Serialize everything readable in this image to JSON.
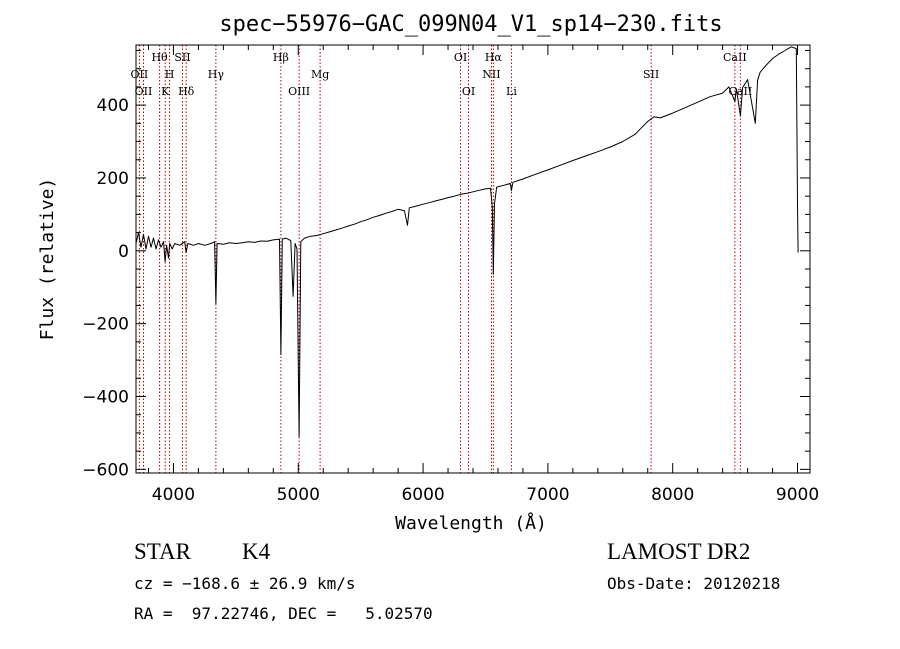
{
  "chart_data": {
    "type": "line",
    "title": "spec−55976−GAC_099N04_V1_sp14−230.fits",
    "xlabel": "Wavelength (Å)",
    "ylabel": "Flux (relative)",
    "xlim": [
      3700,
      9100
    ],
    "ylim": [
      -610,
      565
    ],
    "x_ticks": [
      4000,
      5000,
      6000,
      7000,
      8000,
      9000
    ],
    "y_ticks": [
      -600,
      -400,
      -200,
      0,
      200,
      400
    ],
    "grid": false,
    "series": [
      {
        "points": [
          [
            3700,
            20
          ],
          [
            3720,
            50
          ],
          [
            3740,
            10
          ],
          [
            3760,
            45
          ],
          [
            3780,
            5
          ],
          [
            3800,
            40
          ],
          [
            3820,
            10
          ],
          [
            3840,
            35
          ],
          [
            3860,
            5
          ],
          [
            3880,
            30
          ],
          [
            3900,
            10
          ],
          [
            3920,
            25
          ],
          [
            3933,
            -30
          ],
          [
            3945,
            15
          ],
          [
            3960,
            -20
          ],
          [
            3970,
            20
          ],
          [
            3990,
            5
          ],
          [
            4010,
            20
          ],
          [
            4050,
            15
          ],
          [
            4090,
            25
          ],
          [
            4101,
            -5
          ],
          [
            4115,
            20
          ],
          [
            4160,
            15
          ],
          [
            4200,
            20
          ],
          [
            4250,
            15
          ],
          [
            4300,
            20
          ],
          [
            4330,
            25
          ],
          [
            4340,
            -145
          ],
          [
            4350,
            20
          ],
          [
            4400,
            18
          ],
          [
            4450,
            22
          ],
          [
            4500,
            20
          ],
          [
            4550,
            22
          ],
          [
            4600,
            25
          ],
          [
            4650,
            23
          ],
          [
            4700,
            27
          ],
          [
            4750,
            26
          ],
          [
            4800,
            30
          ],
          [
            4850,
            32
          ],
          [
            4861,
            -285
          ],
          [
            4872,
            32
          ],
          [
            4900,
            35
          ],
          [
            4940,
            28
          ],
          [
            4959,
            -125
          ],
          [
            4975,
            20
          ],
          [
            4990,
            5
          ],
          [
            5007,
            -510
          ],
          [
            5020,
            25
          ],
          [
            5050,
            35
          ],
          [
            5100,
            40
          ],
          [
            5150,
            42
          ],
          [
            5200,
            47
          ],
          [
            5250,
            52
          ],
          [
            5300,
            57
          ],
          [
            5350,
            62
          ],
          [
            5400,
            68
          ],
          [
            5450,
            73
          ],
          [
            5500,
            80
          ],
          [
            5550,
            85
          ],
          [
            5600,
            92
          ],
          [
            5650,
            97
          ],
          [
            5700,
            103
          ],
          [
            5750,
            108
          ],
          [
            5800,
            114
          ],
          [
            5850,
            110
          ],
          [
            5875,
            70
          ],
          [
            5890,
            118
          ],
          [
            5950,
            123
          ],
          [
            6000,
            128
          ],
          [
            6050,
            132
          ],
          [
            6100,
            137
          ],
          [
            6150,
            141
          ],
          [
            6200,
            146
          ],
          [
            6250,
            150
          ],
          [
            6300,
            155
          ],
          [
            6350,
            158
          ],
          [
            6400,
            162
          ],
          [
            6450,
            166
          ],
          [
            6500,
            170
          ],
          [
            6540,
            172
          ],
          [
            6555,
            120
          ],
          [
            6563,
            -65
          ],
          [
            6572,
            130
          ],
          [
            6590,
            175
          ],
          [
            6650,
            180
          ],
          [
            6700,
            185
          ],
          [
            6708,
            165
          ],
          [
            6720,
            188
          ],
          [
            6800,
            197
          ],
          [
            6900,
            210
          ],
          [
            7000,
            222
          ],
          [
            7100,
            235
          ],
          [
            7200,
            248
          ],
          [
            7300,
            260
          ],
          [
            7400,
            272
          ],
          [
            7500,
            285
          ],
          [
            7600,
            300
          ],
          [
            7700,
            320
          ],
          [
            7750,
            338
          ],
          [
            7800,
            355
          ],
          [
            7850,
            368
          ],
          [
            7900,
            365
          ],
          [
            8000,
            378
          ],
          [
            8100,
            393
          ],
          [
            8200,
            408
          ],
          [
            8300,
            423
          ],
          [
            8400,
            433
          ],
          [
            8450,
            450
          ],
          [
            8498,
            410
          ],
          [
            8510,
            445
          ],
          [
            8542,
            370
          ],
          [
            8560,
            448
          ],
          [
            8600,
            470
          ],
          [
            8662,
            350
          ],
          [
            8680,
            468
          ],
          [
            8700,
            490
          ],
          [
            8750,
            510
          ],
          [
            8800,
            528
          ],
          [
            8850,
            540
          ],
          [
            8900,
            550
          ],
          [
            8950,
            560
          ],
          [
            8990,
            555
          ],
          [
            9000,
            130
          ],
          [
            9005,
            -5
          ]
        ]
      }
    ],
    "lines": [
      {
        "wavelength": 3727,
        "labels": [
          {
            "text": "OII",
            "row": 2
          }
        ]
      },
      {
        "wavelength": 3760,
        "labels": [
          {
            "text": "OII",
            "row": 3
          }
        ]
      },
      {
        "wavelength": 3889,
        "labels": [
          {
            "text": "Hθ",
            "row": 1
          }
        ]
      },
      {
        "wavelength": 3934,
        "labels": [
          {
            "text": "K",
            "row": 3
          }
        ]
      },
      {
        "wavelength": 3969,
        "labels": [
          {
            "text": "H",
            "row": 2
          }
        ]
      },
      {
        "wavelength": 4072,
        "labels": [
          {
            "text": "SII",
            "row": 1
          }
        ]
      },
      {
        "wavelength": 4102,
        "labels": [
          {
            "text": "Hδ",
            "row": 3
          }
        ]
      },
      {
        "wavelength": 4340,
        "labels": [
          {
            "text": "Hγ",
            "row": 2
          }
        ]
      },
      {
        "wavelength": 4861,
        "labels": [
          {
            "text": "Hβ",
            "row": 1
          }
        ]
      },
      {
        "wavelength": 5007,
        "labels": [
          {
            "text": "OIII",
            "row": 3
          }
        ]
      },
      {
        "wavelength": 5175,
        "labels": [
          {
            "text": "Mg",
            "row": 2
          }
        ]
      },
      {
        "wavelength": 6300,
        "labels": [
          {
            "text": "OI",
            "row": 1
          }
        ]
      },
      {
        "wavelength": 6364,
        "labels": [
          {
            "text": "OI",
            "row": 3
          }
        ]
      },
      {
        "wavelength": 6548,
        "labels": [
          {
            "text": "NII",
            "row": 2
          }
        ]
      },
      {
        "wavelength": 6563,
        "labels": [
          {
            "text": "Hα",
            "row": 1
          }
        ]
      },
      {
        "wavelength": 6708,
        "labels": [
          {
            "text": "Li",
            "row": 3
          }
        ]
      },
      {
        "wavelength": 7827,
        "labels": [
          {
            "text": "SII",
            "row": 2
          }
        ]
      },
      {
        "wavelength": 8498,
        "labels": [
          {
            "text": "CaII",
            "row": 1
          }
        ]
      },
      {
        "wavelength": 8542,
        "labels": [
          {
            "text": "CaII",
            "row": 3
          }
        ]
      }
    ],
    "colors": {
      "spectrum": "#000000",
      "line_markers": "#b00000",
      "axes": "#000000"
    }
  },
  "info": {
    "class_label": "STAR",
    "subclass_label": "K4",
    "survey": "LAMOST DR2",
    "cz": "cz = −168.6 ± 26.9 km/s",
    "obs_date": "Obs-Date: 20120218",
    "radec": "RA =  97.22746, DEC =   5.02570"
  }
}
